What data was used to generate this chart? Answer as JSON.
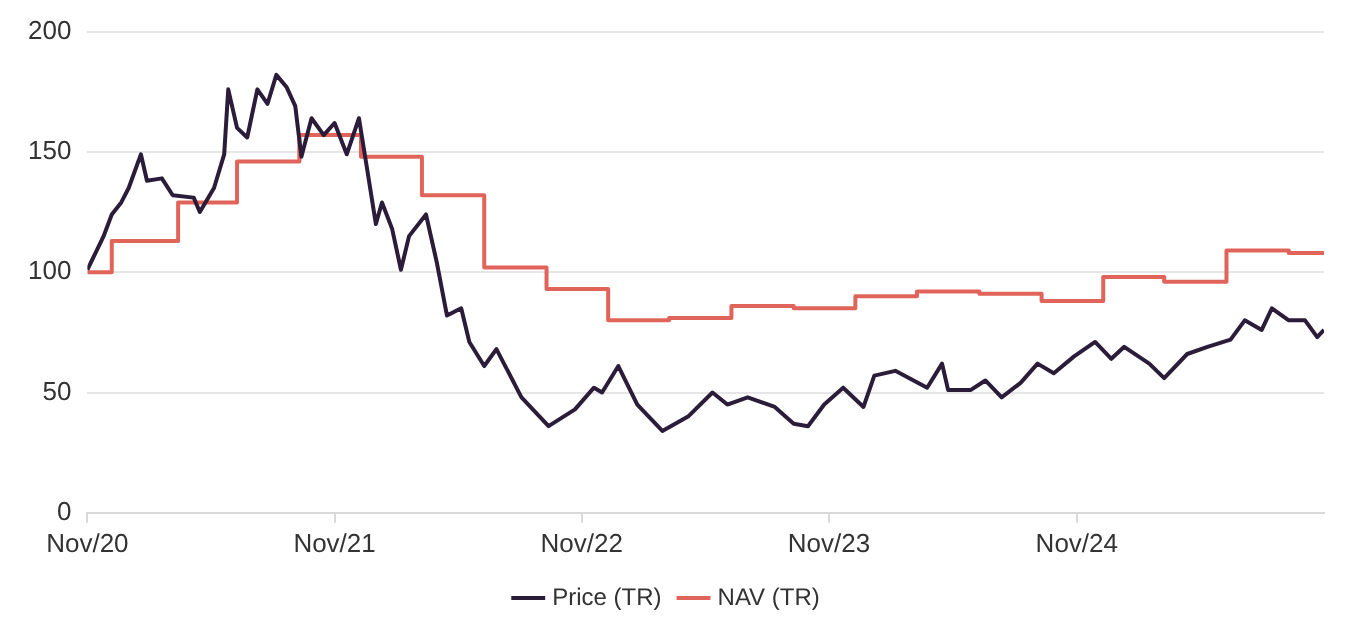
{
  "chart_data": {
    "type": "line",
    "ylim": [
      0,
      200
    ],
    "yticks": [
      0,
      50,
      100,
      150,
      200
    ],
    "xlim": [
      "2020-11-01",
      "2025-11-01"
    ],
    "xticks": [
      {
        "value": "2020-11-01",
        "label": "Nov/20"
      },
      {
        "value": "2021-11-01",
        "label": "Nov/21"
      },
      {
        "value": "2022-11-01",
        "label": "Nov/22"
      },
      {
        "value": "2023-11-01",
        "label": "Nov/23"
      },
      {
        "value": "2024-11-01",
        "label": "Nov/24"
      }
    ],
    "grid": "y",
    "legend": "bottom",
    "series": [
      {
        "name": "Price (TR)",
        "type": "line",
        "color": "#2b1d3a",
        "x": [
          "2020-11-01",
          "2020-11-25",
          "2020-12-07",
          "2020-12-21",
          "2021-01-01",
          "2021-01-19",
          "2021-01-28",
          "2021-02-19",
          "2021-03-07",
          "2021-04-07",
          "2021-04-16",
          "2021-05-07",
          "2021-05-22",
          "2021-05-28",
          "2021-06-10",
          "2021-06-25",
          "2021-07-10",
          "2021-07-25",
          "2021-08-07",
          "2021-08-22",
          "2021-09-04",
          "2021-09-13",
          "2021-09-28",
          "2021-10-16",
          "2021-11-01",
          "2021-11-19",
          "2021-12-07",
          "2021-12-19",
          "2022-01-01",
          "2022-01-10",
          "2022-01-25",
          "2022-02-07",
          "2022-02-19",
          "2022-03-16",
          "2022-04-01",
          "2022-04-16",
          "2022-05-07",
          "2022-05-19",
          "2022-06-10",
          "2022-06-28",
          "2022-08-04",
          "2022-09-13",
          "2022-10-22",
          "2022-11-19",
          "2022-12-01",
          "2022-12-25",
          "2023-01-22",
          "2023-02-28",
          "2023-04-07",
          "2023-05-13",
          "2023-06-04",
          "2023-07-04",
          "2023-08-13",
          "2023-09-10",
          "2023-10-01",
          "2023-10-25",
          "2023-11-22",
          "2023-12-22",
          "2024-01-07",
          "2024-02-07",
          "2024-03-25",
          "2024-04-16",
          "2024-04-25",
          "2024-05-28",
          "2024-06-19",
          "2024-07-13",
          "2024-08-10",
          "2024-09-04",
          "2024-09-28",
          "2024-10-28",
          "2024-11-28",
          "2024-12-22",
          "2025-01-10",
          "2025-02-16",
          "2025-03-10",
          "2025-04-13",
          "2025-05-13",
          "2025-06-16",
          "2025-07-07",
          "2025-08-01",
          "2025-08-16",
          "2025-09-10",
          "2025-10-04",
          "2025-10-22",
          "2025-11-01"
        ],
        "values": [
          101,
          115,
          124,
          129,
          135,
          149,
          138,
          139,
          132,
          131,
          125,
          135,
          149,
          176,
          160,
          156,
          176,
          170,
          182,
          177,
          169,
          148,
          164,
          157,
          162,
          149,
          164,
          143,
          120,
          129,
          118,
          101,
          115,
          124,
          104,
          82,
          85,
          71,
          61,
          68,
          48,
          36,
          43,
          52,
          50,
          61,
          45,
          34,
          40,
          50,
          45,
          48,
          44,
          37,
          36,
          45,
          52,
          44,
          57,
          59,
          52,
          62,
          51,
          51,
          55,
          48,
          54,
          62,
          58,
          65,
          71,
          64,
          69,
          62,
          56,
          66,
          69,
          72,
          80,
          76,
          85,
          80,
          80,
          73,
          76
        ]
      },
      {
        "name": "NAV (TR)",
        "type": "step",
        "color": "#e06459",
        "x": [
          "2020-11-01",
          "2020-12-07",
          "2021-03-15",
          "2021-06-10",
          "2021-09-10",
          "2021-12-10",
          "2022-03-10",
          "2022-06-10",
          "2022-09-10",
          "2022-12-10",
          "2023-03-10",
          "2023-06-10",
          "2023-09-10",
          "2023-12-10",
          "2024-03-10",
          "2024-06-10",
          "2024-09-10",
          "2024-12-10",
          "2025-03-10",
          "2025-06-10",
          "2025-09-10",
          "2025-11-01"
        ],
        "values": [
          100,
          113,
          129,
          146,
          157,
          148,
          132,
          102,
          93,
          80,
          81,
          86,
          85,
          90,
          92,
          91,
          88,
          98,
          96,
          109,
          108,
          108
        ]
      }
    ]
  }
}
